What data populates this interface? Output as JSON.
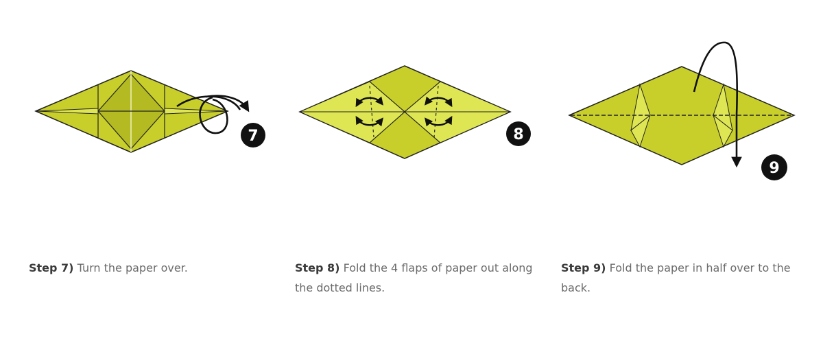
{
  "colors": {
    "paper": "#c8cf2a",
    "paper_dark": "#b4bb22",
    "paper_light": "#dfe653",
    "outline": "#222222",
    "badge": "#111111",
    "caption_text": "#6b6b6b",
    "caption_label": "#3a3a3a"
  },
  "steps": [
    {
      "badge": "7",
      "label": "Step 7)",
      "text": "Turn the paper over."
    },
    {
      "badge": "8",
      "label": "Step 8)",
      "text": "Fold the 4 flaps of paper out along the dotted lines."
    },
    {
      "badge": "9",
      "label": "Step 9)",
      "text": "Fold the paper in half over to the back."
    }
  ]
}
